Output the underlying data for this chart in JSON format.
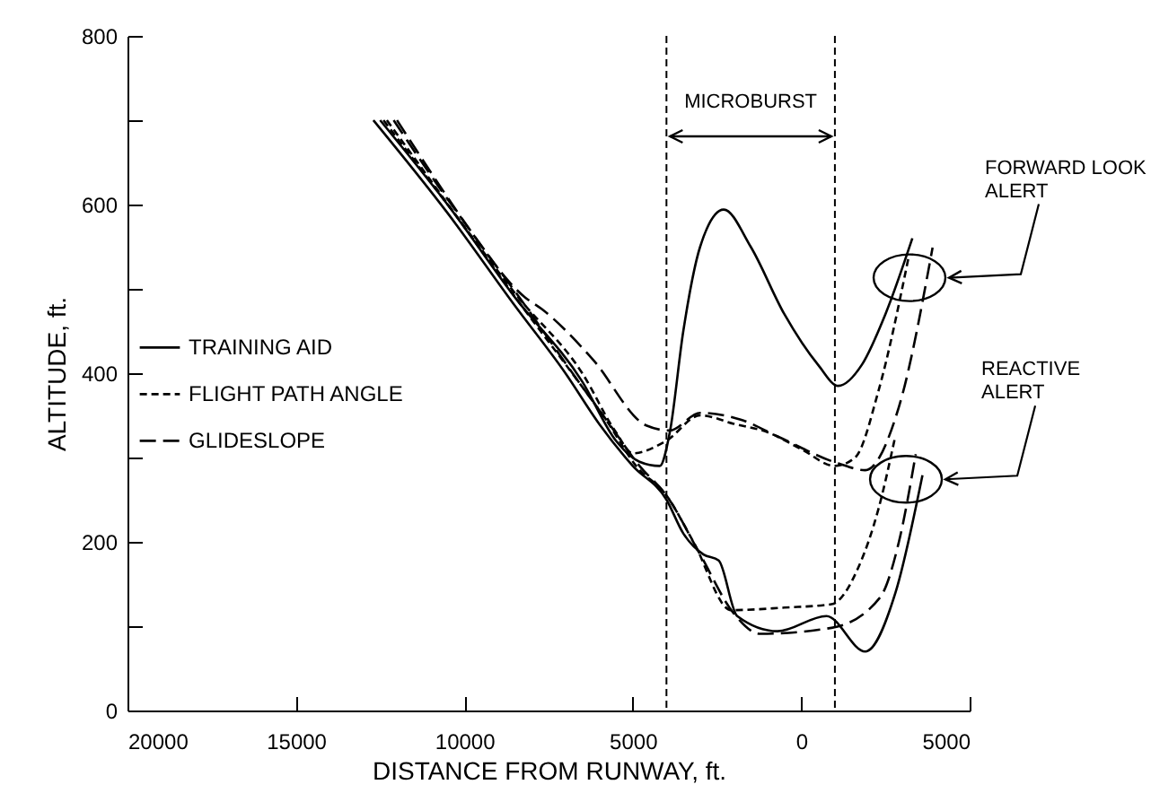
{
  "chart_data": {
    "type": "line",
    "xlabel": "DISTANCE FROM RUNWAY, ft.",
    "ylabel": "ALTITUDE, ft.",
    "xlim": [
      20000,
      -5000
    ],
    "xticks": [
      20000,
      15000,
      10000,
      5000,
      0,
      {
        "value": -5000,
        "label": "5000"
      }
    ],
    "ylim": [
      0,
      800
    ],
    "yticks": [
      0,
      {
        "value": 100,
        "label": null
      },
      200,
      {
        "value": 300,
        "label": null
      },
      400,
      {
        "value": 500,
        "label": null
      },
      600,
      {
        "value": 700,
        "label": null
      },
      800
    ],
    "legend": "left",
    "series": [
      {
        "name": "TRAINING AID",
        "color": "#000000",
        "line_style": "solid",
        "x": [
          12500,
          10500,
          8500,
          6500,
          5500,
          4800,
          4200,
          3900,
          3500,
          3000,
          2300,
          1500,
          500,
          -500,
          -1100,
          -1800,
          -2500,
          -3300
        ],
        "values": [
          700,
          600,
          490,
          390,
          320,
          295,
          290,
          330,
          450,
          550,
          594,
          550,
          470,
          410,
          385,
          410,
          470,
          560
        ]
      },
      {
        "name": "FLIGHT PATH ANGLE",
        "color": "#000000",
        "line_style": "dotted",
        "x": [
          12400,
          10400,
          8400,
          6500,
          5500,
          5000,
          4000,
          3000,
          2000,
          1000,
          0,
          -1000,
          -1600,
          -2300,
          -3200
        ],
        "values": [
          700,
          595,
          490,
          400,
          330,
          305,
          320,
          350,
          340,
          330,
          310,
          290,
          300,
          380,
          540
        ]
      },
      {
        "name": "GLIDESLOPE",
        "color": "#000000",
        "line_style": "dashed",
        "x": [
          12100,
          10200,
          8200,
          7700,
          6200,
          4600,
          3900,
          3000,
          1800,
          700,
          -1100,
          -1900,
          -2900,
          -3900
        ],
        "values": [
          700,
          590,
          490,
          476,
          417,
          338,
          332,
          353,
          345,
          325,
          293,
          285,
          360,
          549
        ]
      },
      {
        "color": "#000000",
        "line_style": "solid",
        "x": [
          12700,
          10500,
          8500,
          7000,
          6000,
          5000,
          4000,
          3500,
          2900,
          2450,
          1900,
          700,
          -750,
          -1900,
          -2800,
          -3600
        ],
        "values": [
          700,
          590,
          480,
          400,
          340,
          290,
          250,
          210,
          185,
          178,
          112,
          94,
          112,
          70,
          140,
          279
        ]
      },
      {
        "color": "#000000",
        "line_style": "dotted",
        "x": [
          12300,
          10300,
          8300,
          6800,
          5800,
          4900,
          4000,
          3200,
          2080,
          500,
          -900,
          -1700,
          -2300,
          -2770
        ],
        "values": [
          700,
          590,
          480,
          400,
          345,
          290,
          255,
          200,
          119,
          122,
          126,
          170,
          240,
          321
        ]
      },
      {
        "color": "#000000",
        "line_style": "dashed",
        "x": [
          12000,
          10100,
          8100,
          6700,
          5700,
          4800,
          4000,
          3000,
          2000,
          1220,
          -900,
          -2340,
          -2900,
          -3400
        ],
        "values": [
          700,
          585,
          475,
          395,
          340,
          290,
          255,
          185,
          115,
          91,
          98,
          134,
          200,
          304
        ]
      }
    ],
    "ref_lines": [
      {
        "axis": "x",
        "value": 4000,
        "color": "#000000",
        "line_style": "dotted"
      },
      {
        "axis": "x",
        "value": -1000,
        "color": "#000000",
        "line_style": "dotted"
      }
    ],
    "annotations": [
      "MICROBURST",
      "FORWARD LOOK\nALERT",
      "REACTIVE\nALERT"
    ]
  }
}
